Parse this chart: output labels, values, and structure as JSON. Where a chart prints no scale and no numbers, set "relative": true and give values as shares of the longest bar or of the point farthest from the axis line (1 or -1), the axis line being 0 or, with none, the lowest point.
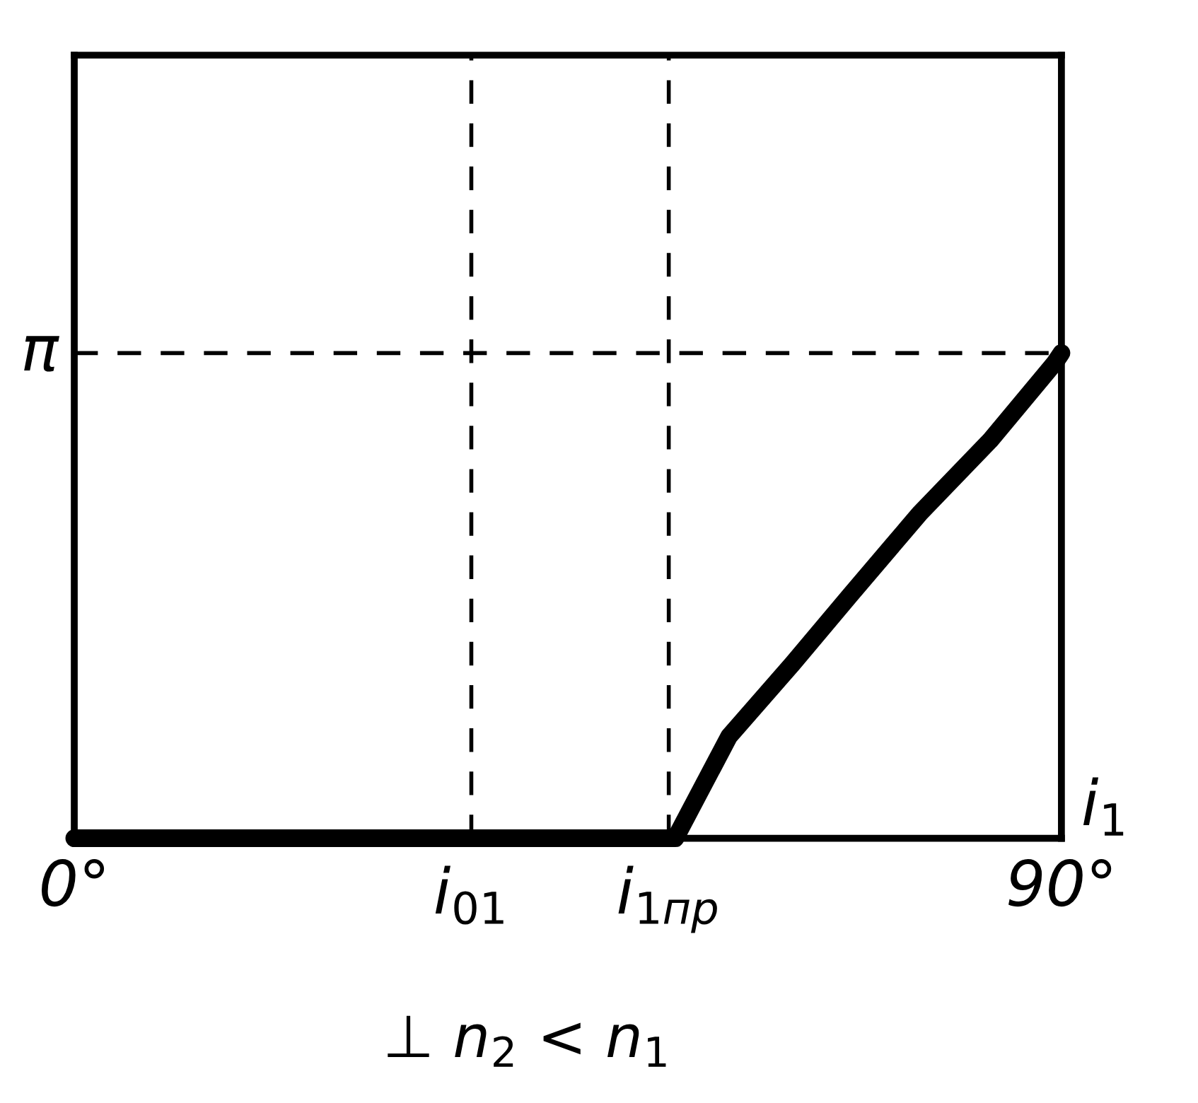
{
  "chart_data": {
    "type": "line",
    "xlabel": "i$_{1}$",
    "relative": true,
    "series": [
      {
        "color": "#000000",
        "x": [
          0,
          54.8,
          59.7,
          65.5,
          70.7,
          77.1,
          83.5,
          89.4,
          90
        ],
        "values": [
          0,
          0,
          0.21,
          0.36,
          0.5,
          0.67,
          0.82,
          0.98,
          1
        ]
      }
    ],
    "xlim": [
      0,
      90
    ],
    "xticks": [
      {
        "value": 0,
        "label": "0°"
      },
      {
        "value": 90,
        "label": "90°"
      }
    ],
    "ref_lines": [
      {
        "axis": "x",
        "value": 36.2,
        "label": "i$_{01}$",
        "color": "#000000",
        "line_style": "dashed"
      },
      {
        "axis": "x",
        "value": 54.2,
        "label": "i$_{1пр}$",
        "color": "#000000",
        "line_style": "dashed"
      },
      {
        "axis": "y",
        "value": 1,
        "label": "π",
        "color": "#000000",
        "line_style": "dashed"
      }
    ],
    "annotations": [
      "⊥ n$_{2}$ < n$_{1}$"
    ],
    "legend": false,
    "line_style": "solid"
  }
}
